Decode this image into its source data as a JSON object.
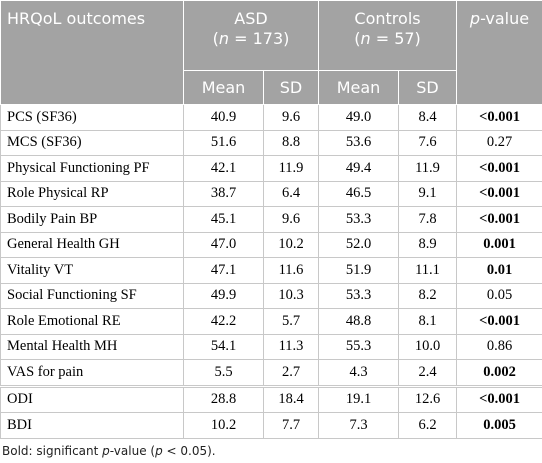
{
  "header": {
    "outcome": "HRQoL outcomes",
    "groups": [
      {
        "label": "ASD",
        "open": "(",
        "n_var": "n",
        "n_rest": " = 173)"
      },
      {
        "label": "Controls",
        "open": "(",
        "n_var": "n",
        "n_rest": " = 57)"
      }
    ],
    "p_var": "p",
    "p_rest": "-value",
    "sub": [
      "Mean",
      "SD",
      "Mean",
      "SD"
    ]
  },
  "table": {
    "rows": [
      [
        "PCS (SF36)",
        "40.9",
        "9.6",
        "49.0",
        "8.4",
        "<0.001"
      ],
      [
        "MCS (SF36)",
        "51.6",
        "8.8",
        "53.6",
        "7.6",
        "0.27"
      ],
      [
        "Physical Functioning PF",
        "42.1",
        "11.9",
        "49.4",
        "11.9",
        "<0.001"
      ],
      [
        "Role Physical RP",
        "38.7",
        "6.4",
        "46.5",
        "9.1",
        "<0.001"
      ],
      [
        "Bodily Pain BP",
        "45.1",
        "9.6",
        "53.3",
        "7.8",
        "<0.001"
      ],
      [
        "General Health GH",
        "47.0",
        "10.2",
        "52.0",
        "8.9",
        "0.001"
      ],
      [
        "Vitality VT",
        "47.1",
        "11.6",
        "51.9",
        "11.1",
        "0.01"
      ],
      [
        "Social Functioning SF",
        "49.9",
        "10.3",
        "53.3",
        "8.2",
        "0.05"
      ],
      [
        "Role Emotional RE",
        "42.2",
        "5.7",
        "48.8",
        "8.1",
        "<0.001"
      ],
      [
        "Mental Health MH",
        "54.1",
        "11.3",
        "55.3",
        "10.0",
        "0.86"
      ],
      [
        "VAS for pain",
        "5.5",
        "2.7",
        "4.3",
        "2.4",
        "0.002"
      ],
      [
        "ODI",
        "28.8",
        "18.4",
        "19.1",
        "12.6",
        "<0.001"
      ],
      [
        "BDI",
        "10.2",
        "7.7",
        "7.3",
        "6.2",
        "0.005"
      ]
    ],
    "p_bold": [
      true,
      false,
      true,
      true,
      true,
      true,
      true,
      false,
      true,
      false,
      true,
      true,
      true
    ]
  },
  "footnote": [
    "Bold: significant ",
    "p",
    "-value (",
    "p",
    " < 0.05)."
  ]
}
